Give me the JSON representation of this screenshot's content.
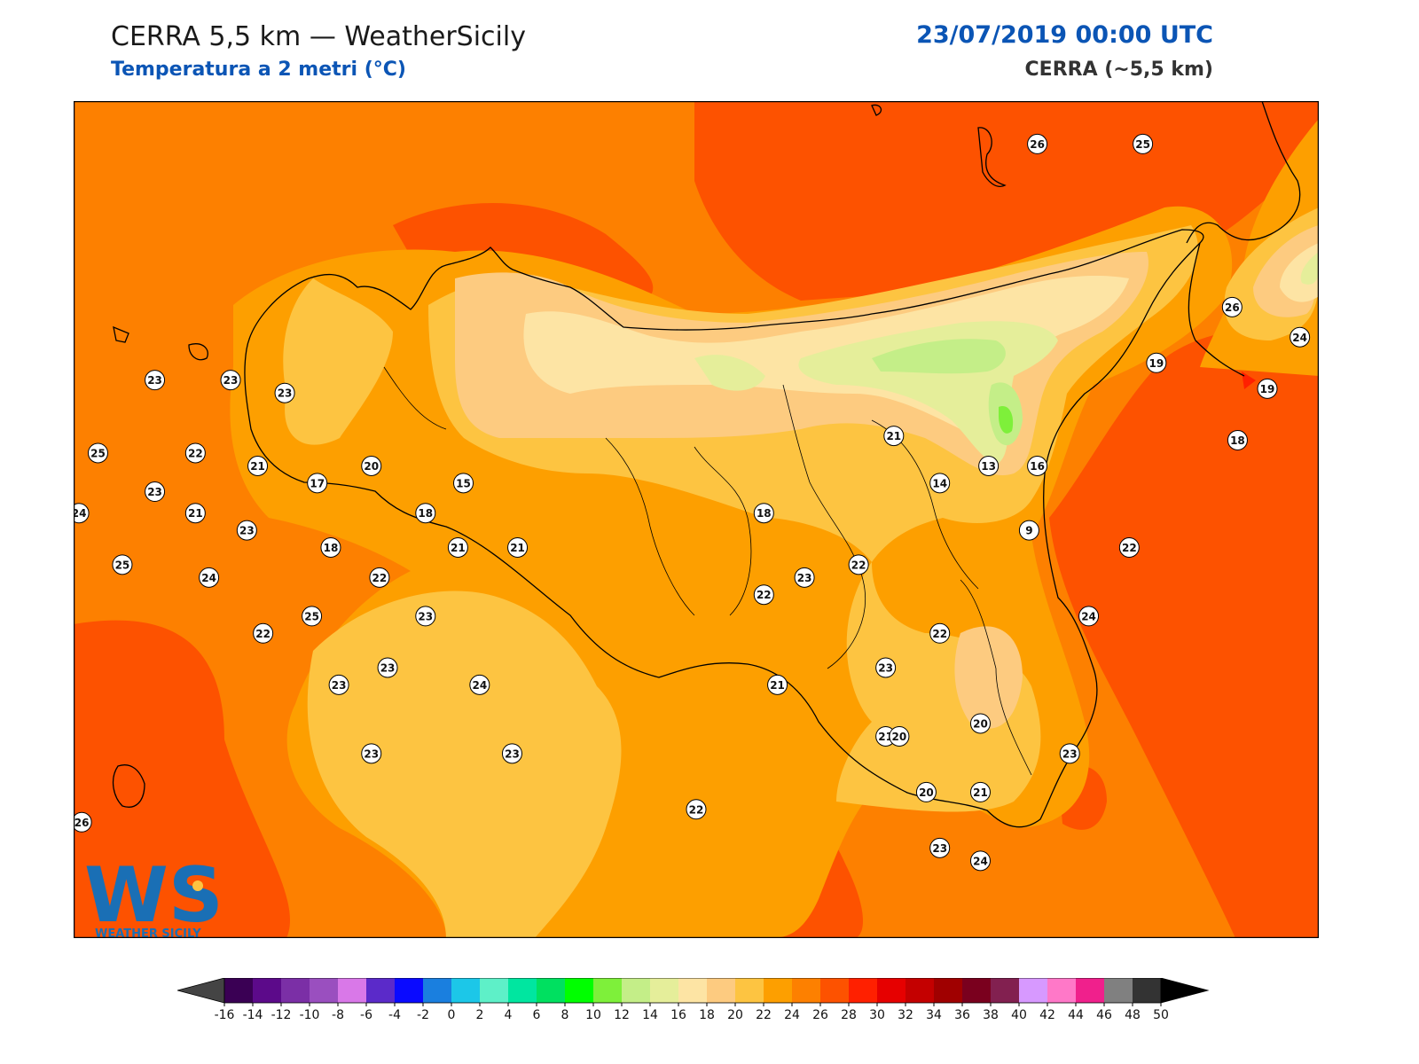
{
  "header": {
    "title_left": "CERRA 5,5 km — WeatherSicily",
    "subtitle_left": "Temperatura a 2 metri (°C)",
    "title_right": "23/07/2019 00:00 UTC",
    "subtitle_right": "CERRA (~5,5 km)"
  },
  "logo": {
    "mark": "WS",
    "text": "WEATHER SICILY"
  },
  "temperature_labels": [
    {
      "value": 26,
      "lon": 15.46,
      "lat": 38.85
    },
    {
      "value": 25,
      "lon": 15.85,
      "lat": 38.85
    },
    {
      "value": 26,
      "lon": 16.18,
      "lat": 38.47
    },
    {
      "value": 24,
      "lon": 16.43,
      "lat": 38.4
    },
    {
      "value": 19,
      "lon": 15.9,
      "lat": 38.34
    },
    {
      "value": 19,
      "lon": 16.31,
      "lat": 38.28
    },
    {
      "value": 18,
      "lon": 16.2,
      "lat": 38.16
    },
    {
      "value": 23,
      "lon": 12.2,
      "lat": 38.3
    },
    {
      "value": 23,
      "lon": 12.48,
      "lat": 38.3
    },
    {
      "value": 23,
      "lon": 12.68,
      "lat": 38.27
    },
    {
      "value": 25,
      "lon": 11.99,
      "lat": 38.13
    },
    {
      "value": 22,
      "lon": 12.35,
      "lat": 38.13
    },
    {
      "value": 21,
      "lon": 12.58,
      "lat": 38.1
    },
    {
      "value": 20,
      "lon": 13.0,
      "lat": 38.1
    },
    {
      "value": 21,
      "lon": 14.93,
      "lat": 38.17
    },
    {
      "value": 13,
      "lon": 15.28,
      "lat": 38.1
    },
    {
      "value": 16,
      "lon": 15.46,
      "lat": 38.1
    },
    {
      "value": 17,
      "lon": 12.8,
      "lat": 38.06
    },
    {
      "value": 15,
      "lon": 13.34,
      "lat": 38.06
    },
    {
      "value": 14,
      "lon": 15.1,
      "lat": 38.06
    },
    {
      "value": 23,
      "lon": 12.2,
      "lat": 38.04
    },
    {
      "value": 24,
      "lon": 11.92,
      "lat": 37.99
    },
    {
      "value": 21,
      "lon": 12.35,
      "lat": 37.99
    },
    {
      "value": 18,
      "lon": 13.2,
      "lat": 37.99
    },
    {
      "value": 18,
      "lon": 14.45,
      "lat": 37.99
    },
    {
      "value": 23,
      "lon": 12.54,
      "lat": 37.95
    },
    {
      "value": 9,
      "lon": 15.43,
      "lat": 37.95
    },
    {
      "value": 18,
      "lon": 12.85,
      "lat": 37.91
    },
    {
      "value": 21,
      "lon": 13.32,
      "lat": 37.91
    },
    {
      "value": 21,
      "lon": 13.54,
      "lat": 37.91
    },
    {
      "value": 22,
      "lon": 15.8,
      "lat": 37.91
    },
    {
      "value": 25,
      "lon": 12.08,
      "lat": 37.87
    },
    {
      "value": 22,
      "lon": 14.8,
      "lat": 37.87
    },
    {
      "value": 24,
      "lon": 12.4,
      "lat": 37.84
    },
    {
      "value": 22,
      "lon": 13.03,
      "lat": 37.84
    },
    {
      "value": 23,
      "lon": 14.6,
      "lat": 37.84
    },
    {
      "value": 22,
      "lon": 14.45,
      "lat": 37.8
    },
    {
      "value": 23,
      "lon": 13.2,
      "lat": 37.75
    },
    {
      "value": 24,
      "lon": 15.65,
      "lat": 37.75
    },
    {
      "value": 25,
      "lon": 12.78,
      "lat": 37.75
    },
    {
      "value": 22,
      "lon": 12.6,
      "lat": 37.71
    },
    {
      "value": 22,
      "lon": 15.1,
      "lat": 37.71
    },
    {
      "value": 23,
      "lon": 13.06,
      "lat": 37.63
    },
    {
      "value": 23,
      "lon": 14.9,
      "lat": 37.63
    },
    {
      "value": 23,
      "lon": 12.88,
      "lat": 37.59
    },
    {
      "value": 24,
      "lon": 13.4,
      "lat": 37.59
    },
    {
      "value": 21,
      "lon": 14.5,
      "lat": 37.59
    },
    {
      "value": 20,
      "lon": 15.25,
      "lat": 37.5
    },
    {
      "value": 21,
      "lon": 14.9,
      "lat": 37.47
    },
    {
      "value": 20,
      "lon": 14.95,
      "lat": 37.47
    },
    {
      "value": 23,
      "lon": 13.0,
      "lat": 37.43
    },
    {
      "value": 23,
      "lon": 13.52,
      "lat": 37.43
    },
    {
      "value": 23,
      "lon": 15.58,
      "lat": 37.43
    },
    {
      "value": 20,
      "lon": 15.05,
      "lat": 37.34
    },
    {
      "value": 21,
      "lon": 15.25,
      "lat": 37.34
    },
    {
      "value": 22,
      "lon": 14.2,
      "lat": 37.3
    },
    {
      "value": 26,
      "lon": 11.93,
      "lat": 37.27
    },
    {
      "value": 23,
      "lon": 15.1,
      "lat": 37.21
    },
    {
      "value": 24,
      "lon": 15.25,
      "lat": 37.18
    }
  ],
  "colorbar": {
    "ticks": [
      -16,
      -14,
      -12,
      -10,
      -8,
      -6,
      -4,
      -2,
      0,
      2,
      4,
      6,
      8,
      10,
      12,
      14,
      16,
      18,
      20,
      22,
      24,
      26,
      28,
      30,
      32,
      34,
      36,
      38,
      40,
      42,
      44,
      46,
      48,
      50
    ],
    "colors": [
      "#3a0054",
      "#5c0a8a",
      "#7b2fa6",
      "#9a4fbf",
      "#d978e8",
      "#5b2ac9",
      "#0a0aff",
      "#1a7fdf",
      "#1cc7e8",
      "#5ef0c8",
      "#00e6a0",
      "#00e060",
      "#00ff00",
      "#7ef03a",
      "#c4ee88",
      "#e5ee9a",
      "#fde4a4",
      "#fdcb80",
      "#fdc441",
      "#fd9f00",
      "#fd8000",
      "#fd5200",
      "#ff2000",
      "#e60000",
      "#c40000",
      "#a00000",
      "#7a001e",
      "#822050",
      "#d799ff",
      "#ff78c8",
      "#f0208c",
      "#808080",
      "#333333"
    ],
    "under_color": "#444444",
    "over_color": "#000000"
  }
}
